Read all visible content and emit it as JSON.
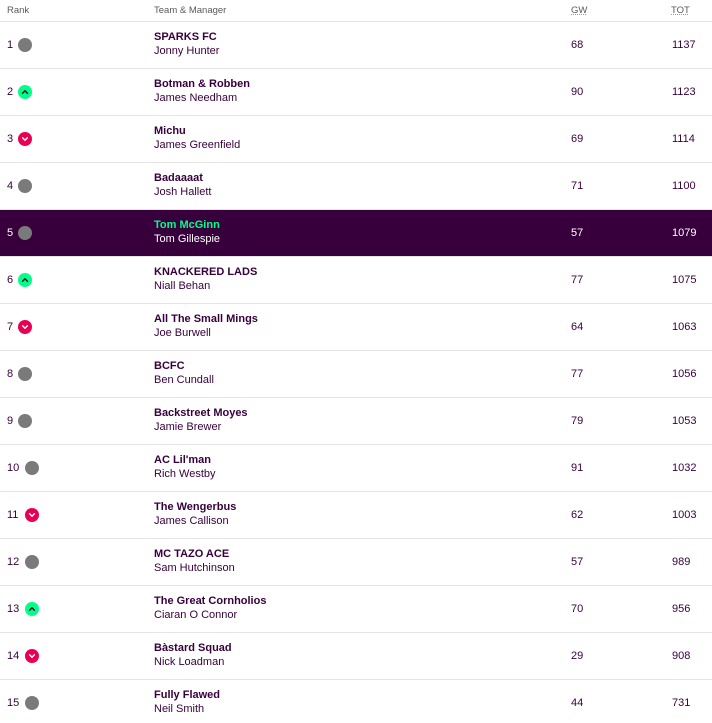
{
  "headers": {
    "rank": "Rank",
    "team": "Team & Manager",
    "gw": "GW",
    "tot": "TOT"
  },
  "colors": {
    "purple": "#37003c",
    "green": "#00ff87",
    "pink": "#e90052",
    "grey": "#7a7a7a"
  },
  "rows": [
    {
      "rank": "1",
      "movement": "same",
      "team": "SPARKS FC",
      "manager": "Jonny Hunter",
      "gw": "68",
      "tot": "1137",
      "active": false
    },
    {
      "rank": "2",
      "movement": "up",
      "team": "Botman & Robben",
      "manager": "James Needham",
      "gw": "90",
      "tot": "1123",
      "active": false
    },
    {
      "rank": "3",
      "movement": "down",
      "team": "Michu",
      "manager": "James Greenfield",
      "gw": "69",
      "tot": "1114",
      "active": false
    },
    {
      "rank": "4",
      "movement": "same",
      "team": "Badaaaat",
      "manager": "Josh Hallett",
      "gw": "71",
      "tot": "1100",
      "active": false
    },
    {
      "rank": "5",
      "movement": "same",
      "team": "Tom McGinn",
      "manager": "Tom Gillespie",
      "gw": "57",
      "tot": "1079",
      "active": true
    },
    {
      "rank": "6",
      "movement": "up",
      "team": "KNACKERED LADS",
      "manager": "Niall Behan",
      "gw": "77",
      "tot": "1075",
      "active": false
    },
    {
      "rank": "7",
      "movement": "down",
      "team": "All The Small Mings",
      "manager": "Joe Burwell",
      "gw": "64",
      "tot": "1063",
      "active": false
    },
    {
      "rank": "8",
      "movement": "same",
      "team": "BCFC",
      "manager": "Ben Cundall",
      "gw": "77",
      "tot": "1056",
      "active": false
    },
    {
      "rank": "9",
      "movement": "same",
      "team": "Backstreet Moyes",
      "manager": "Jamie Brewer",
      "gw": "79",
      "tot": "1053",
      "active": false
    },
    {
      "rank": "10",
      "movement": "same",
      "team": "AC Lil'man",
      "manager": "Rich Westby",
      "gw": "91",
      "tot": "1032",
      "active": false
    },
    {
      "rank": "11",
      "movement": "down",
      "team": "The Wengerbus",
      "manager": "James Callison",
      "gw": "62",
      "tot": "1003",
      "active": false
    },
    {
      "rank": "12",
      "movement": "same",
      "team": "MC TAZO ACE",
      "manager": "Sam Hutchinson",
      "gw": "57",
      "tot": "989",
      "active": false
    },
    {
      "rank": "13",
      "movement": "up",
      "team": "The Great Cornholios",
      "manager": "Ciaran O Connor",
      "gw": "70",
      "tot": "956",
      "active": false
    },
    {
      "rank": "14",
      "movement": "down",
      "team": "Bàstard Squad",
      "manager": "Nick Loadman",
      "gw": "29",
      "tot": "908",
      "active": false
    },
    {
      "rank": "15",
      "movement": "same",
      "team": "Fully Flawed",
      "manager": "Neil Smith",
      "gw": "44",
      "tot": "731",
      "active": false
    }
  ]
}
